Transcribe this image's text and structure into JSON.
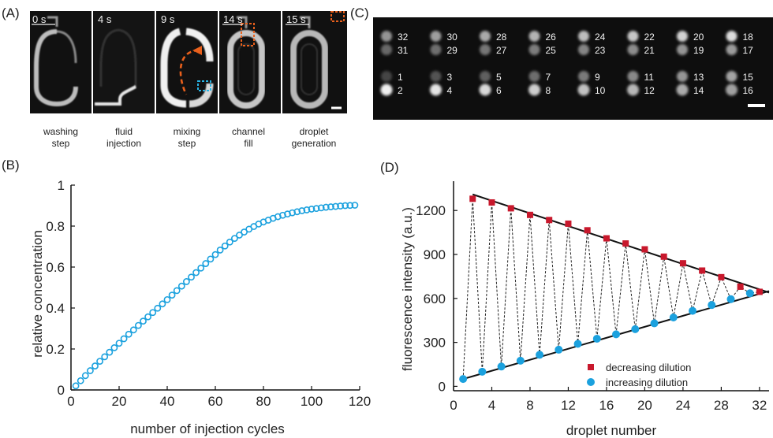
{
  "panels": {
    "A": {
      "label": "(A)",
      "frames": [
        {
          "time": "0 s",
          "caption": [
            "washing",
            "step"
          ]
        },
        {
          "time": "4 s",
          "caption": [
            "fluid",
            "injection"
          ]
        },
        {
          "time": "9 s",
          "caption": [
            "mixing",
            "step"
          ]
        },
        {
          "time": "14 s",
          "caption": [
            "channel",
            "fill"
          ]
        },
        {
          "time": "15 s",
          "caption": [
            "droplet",
            "generation"
          ]
        }
      ]
    },
    "C": {
      "label": "(C)",
      "droplet_pairs_top": [
        [
          32,
          31
        ],
        [
          30,
          29
        ],
        [
          28,
          27
        ],
        [
          26,
          25
        ],
        [
          24,
          23
        ],
        [
          22,
          21
        ],
        [
          20,
          19
        ],
        [
          18,
          17
        ]
      ],
      "droplet_pairs_bottom": [
        [
          1,
          2
        ],
        [
          3,
          4
        ],
        [
          5,
          6
        ],
        [
          7,
          8
        ],
        [
          9,
          10
        ],
        [
          11,
          12
        ],
        [
          13,
          14
        ],
        [
          15,
          16
        ]
      ]
    }
  },
  "colors": {
    "marker_blue": "#1ba1de",
    "marker_red": "#c8182c",
    "annotation_orange": "#e8601c",
    "annotation_blue": "#27b4e6"
  },
  "chart_data": [
    {
      "panel_label": "(B)",
      "type": "scatter",
      "marker": "open-circle",
      "xlabel": "number of injection cycles",
      "ylabel": "relative concentration",
      "xlim": [
        0,
        120
      ],
      "ylim": [
        0,
        1
      ],
      "xticks": [
        0,
        20,
        40,
        60,
        80,
        100,
        120
      ],
      "yticks": [
        0,
        0.2,
        0.4,
        0.6,
        0.8,
        1
      ],
      "ytick_labels": [
        "0",
        "0.2",
        "0.4",
        "0.6",
        "0.8",
        "1"
      ],
      "x": [
        2,
        4,
        6,
        8,
        10,
        12,
        14,
        16,
        18,
        20,
        22,
        24,
        26,
        28,
        30,
        32,
        34,
        36,
        38,
        40,
        42,
        44,
        46,
        48,
        50,
        52,
        54,
        56,
        58,
        60,
        62,
        64,
        66,
        68,
        70,
        72,
        74,
        76,
        78,
        80,
        82,
        84,
        86,
        88,
        90,
        92,
        94,
        96,
        98,
        100,
        102,
        104,
        106,
        108,
        110,
        112,
        114,
        116,
        118
      ],
      "y": [
        0.02,
        0.045,
        0.07,
        0.094,
        0.117,
        0.14,
        0.162,
        0.184,
        0.206,
        0.228,
        0.25,
        0.272,
        0.293,
        0.315,
        0.336,
        0.357,
        0.378,
        0.399,
        0.42,
        0.441,
        0.463,
        0.485,
        0.507,
        0.529,
        0.551,
        0.573,
        0.595,
        0.617,
        0.639,
        0.661,
        0.683,
        0.703,
        0.722,
        0.74,
        0.756,
        0.771,
        0.785,
        0.798,
        0.81,
        0.82,
        0.829,
        0.838,
        0.846,
        0.853,
        0.859,
        0.865,
        0.87,
        0.875,
        0.879,
        0.883,
        0.886,
        0.889,
        0.892,
        0.894,
        0.896,
        0.898,
        0.9,
        0.901,
        0.902
      ]
    },
    {
      "panel_label": "(D)",
      "type": "scatter",
      "xlabel": "droplet number",
      "ylabel": "fluorescence intensity (a.u.)",
      "xlim": [
        0,
        33
      ],
      "ylim": [
        -30,
        1400
      ],
      "xticks": [
        0,
        4,
        8,
        12,
        16,
        20,
        24,
        28,
        32
      ],
      "yticks": [
        0,
        300,
        600,
        900,
        1200
      ],
      "legend_position": "bottom-right",
      "series": [
        {
          "name": "decreasing dilution",
          "marker": "square",
          "x": [
            2,
            4,
            6,
            8,
            10,
            12,
            14,
            16,
            18,
            20,
            22,
            24,
            26,
            28,
            30,
            32
          ],
          "y": [
            1280,
            1255,
            1215,
            1170,
            1135,
            1110,
            1065,
            1010,
            975,
            935,
            885,
            840,
            790,
            745,
            680,
            645
          ]
        },
        {
          "name": "increasing dilution",
          "marker": "circle",
          "x": [
            1,
            3,
            5,
            7,
            9,
            11,
            13,
            15,
            17,
            19,
            21,
            23,
            25,
            27,
            29,
            31
          ],
          "y": [
            50,
            100,
            135,
            175,
            215,
            250,
            290,
            325,
            355,
            390,
            430,
            470,
            515,
            555,
            595,
            635
          ]
        }
      ],
      "fit_lines": [
        {
          "x": [
            2,
            33
          ],
          "y": [
            1310,
            640
          ]
        },
        {
          "x": [
            1,
            33
          ],
          "y": [
            50,
            650
          ]
        }
      ]
    }
  ]
}
